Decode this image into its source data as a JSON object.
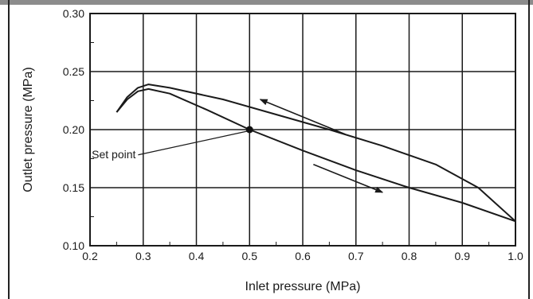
{
  "chart_data": {
    "type": "line",
    "title": "",
    "xlabel": "Inlet pressure (MPa)",
    "ylabel": "Outlet pressure (MPa)",
    "xlim": [
      0.2,
      1.0
    ],
    "ylim": [
      0.1,
      0.3
    ],
    "x_ticks": [
      0.2,
      0.3,
      0.4,
      0.5,
      0.6,
      0.7,
      0.8,
      0.9,
      1.0
    ],
    "x_tick_labels": [
      "0.2",
      "0.3",
      "0.4",
      "0.5",
      "0.6",
      "0.7",
      "0.8",
      "0.9",
      "1.0"
    ],
    "y_ticks": [
      0.1,
      0.15,
      0.2,
      0.25,
      0.3
    ],
    "y_tick_labels": [
      "0.10",
      "0.15",
      "0.20",
      "0.25",
      "0.30"
    ],
    "grid": true,
    "series": [
      {
        "x": [
          0.25,
          0.27,
          0.29,
          0.31,
          0.35,
          0.45,
          0.55,
          0.65,
          0.75,
          0.85,
          0.93,
          1.0
        ],
        "y": [
          0.215,
          0.228,
          0.236,
          0.239,
          0.236,
          0.226,
          0.213,
          0.2,
          0.186,
          0.17,
          0.15,
          0.121
        ]
      },
      {
        "x": [
          0.25,
          0.27,
          0.29,
          0.31,
          0.35,
          0.42,
          0.5,
          0.6,
          0.7,
          0.8,
          0.9,
          1.0
        ],
        "y": [
          0.215,
          0.226,
          0.233,
          0.235,
          0.231,
          0.217,
          0.2,
          0.182,
          0.165,
          0.15,
          0.137,
          0.121
        ]
      }
    ],
    "arrows": [
      {
        "x1": 0.68,
        "y1": 0.196,
        "x2": 0.52,
        "y2": 0.226
      },
      {
        "x1": 0.62,
        "y1": 0.17,
        "x2": 0.75,
        "y2": 0.146
      }
    ],
    "marker": {
      "x": 0.5,
      "y": 0.2
    },
    "annotation": {
      "text": "Set point"
    }
  }
}
